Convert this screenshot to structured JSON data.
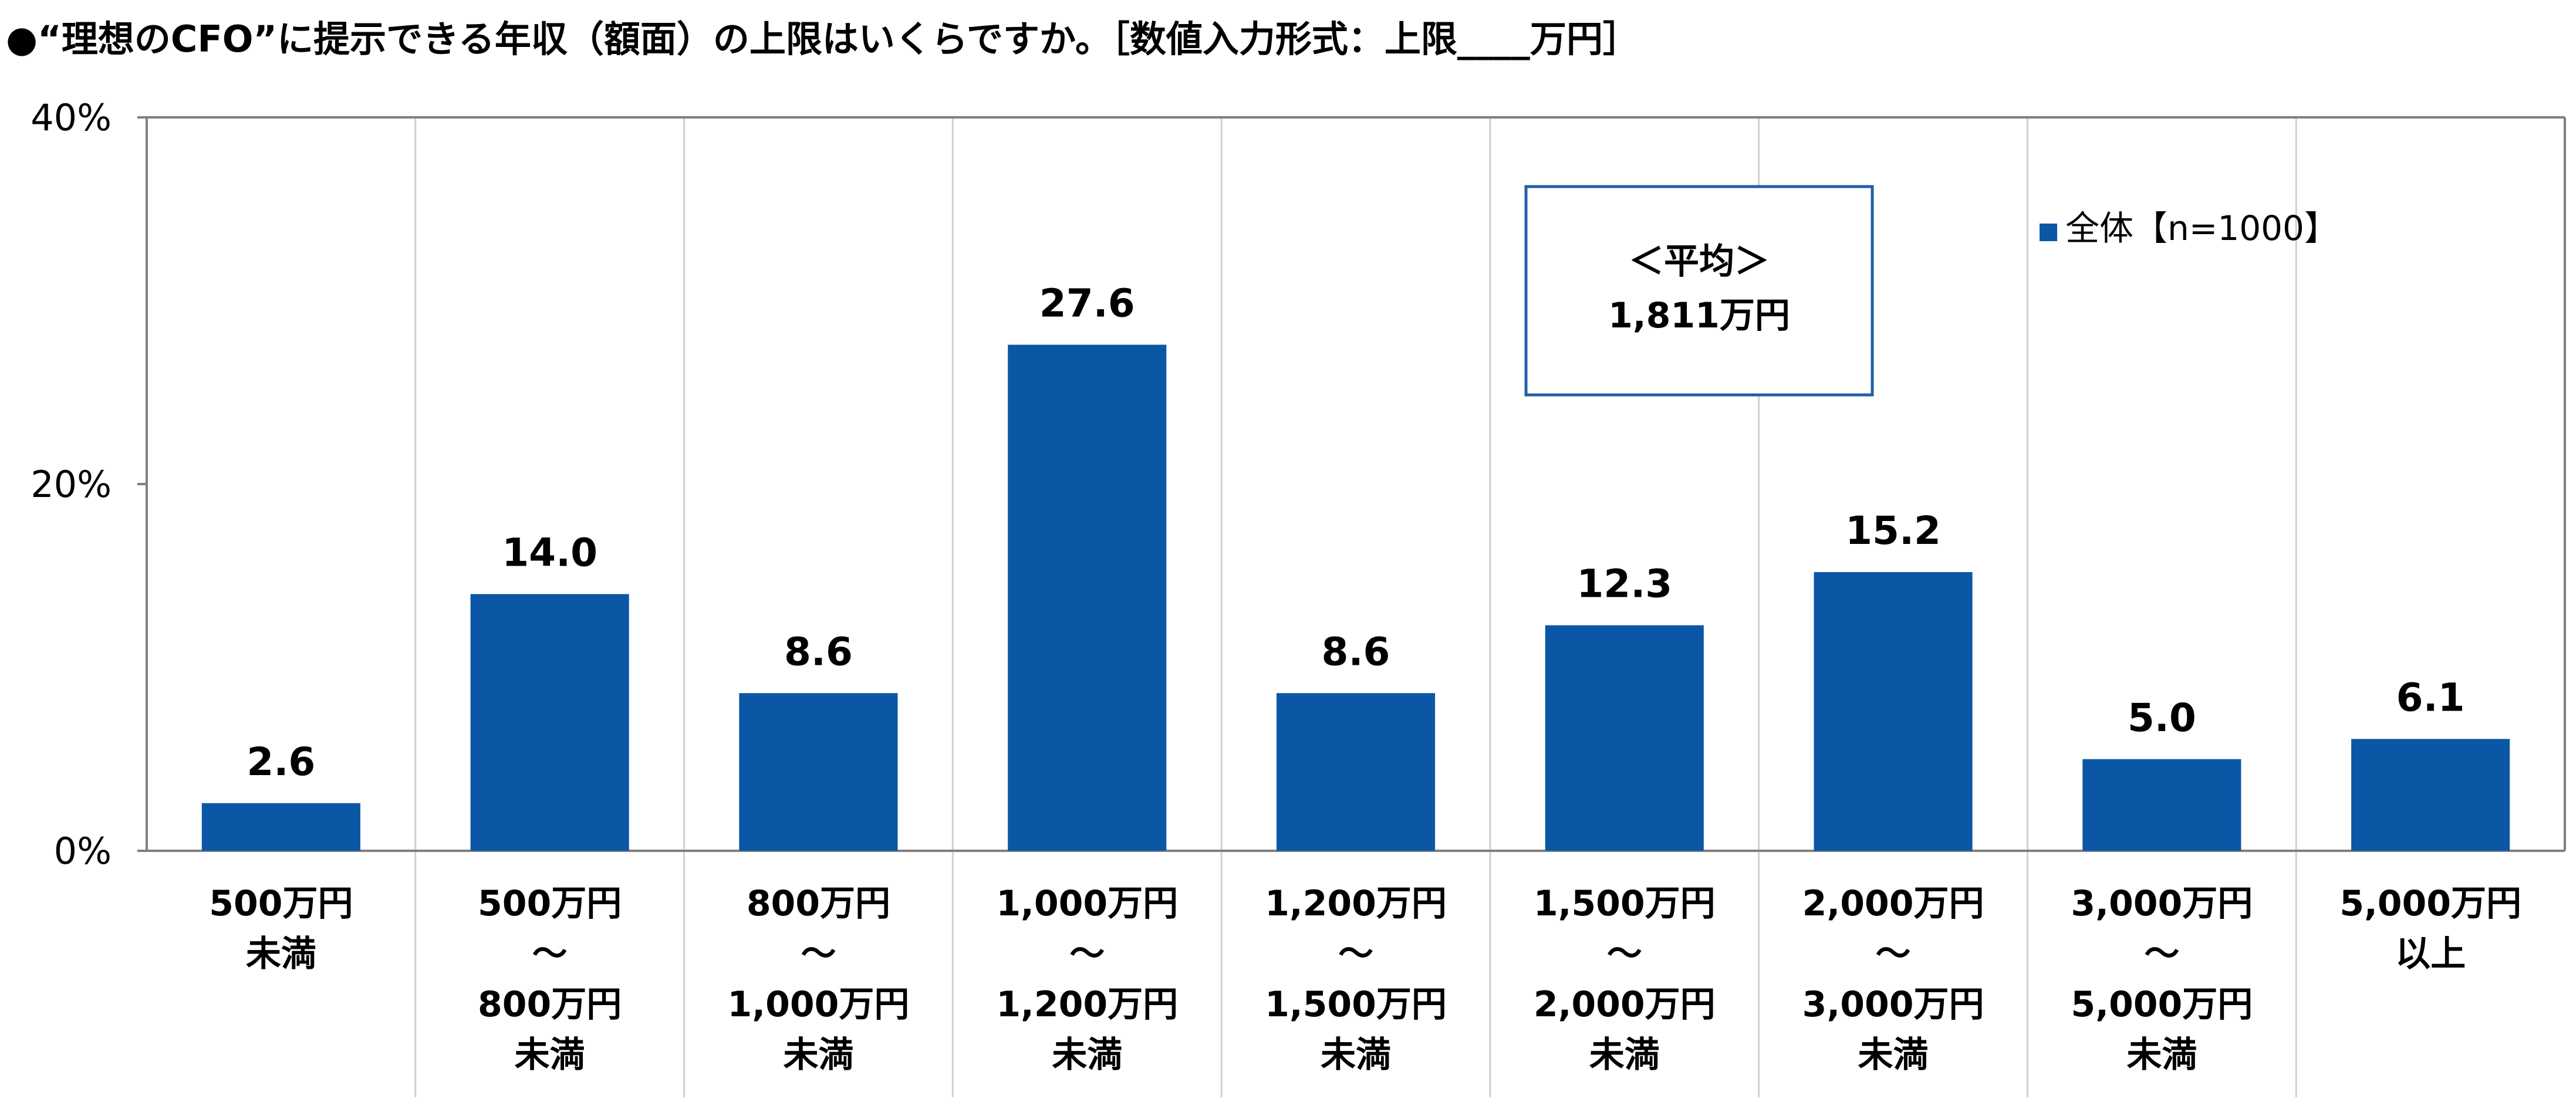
{
  "title": "●“理想のCFO”に提示できる年収（額面）の上限はいくらですか。［数値入力形式：上限____万円］",
  "chart_data": {
    "type": "bar",
    "title": "●“理想のCFO”に提示できる年収（額面）の上限はいくらですか。［数値入力形式：上限____万円］",
    "categories": [
      [
        "500万円",
        "未満"
      ],
      [
        "500万円",
        "～",
        "800万円",
        "未満"
      ],
      [
        "800万円",
        "～",
        "1,000万円",
        "未満"
      ],
      [
        "1,000万円",
        "～",
        "1,200万円",
        "未満"
      ],
      [
        "1,200万円",
        "～",
        "1,500万円",
        "未満"
      ],
      [
        "1,500万円",
        "～",
        "2,000万円",
        "未満"
      ],
      [
        "2,000万円",
        "～",
        "3,000万円",
        "未満"
      ],
      [
        "3,000万円",
        "～",
        "5,000万円",
        "未満"
      ],
      [
        "5,000万円",
        "以上"
      ]
    ],
    "series": [
      {
        "name": "全体【n=1000】",
        "values": [
          2.6,
          14.0,
          8.6,
          27.6,
          8.6,
          12.3,
          15.2,
          5.0,
          6.1
        ],
        "value_labels": [
          "2.6",
          "14.0",
          "8.6",
          "27.6",
          "8.6",
          "12.3",
          "15.2",
          "5.0",
          "6.1"
        ],
        "color": "#0b57a6"
      }
    ],
    "yticks": [
      "0%",
      "20%",
      "40%"
    ],
    "ytick_values": [
      0,
      20,
      40
    ],
    "ylim": [
      0,
      40
    ],
    "grid": "vertical category separators only",
    "legend": {
      "position": "top-right",
      "label": "全体【n=1000】"
    },
    "annotation": {
      "line1": "＜平均＞",
      "line2": "1,811万円"
    }
  },
  "colors": {
    "bar": "#0b57a6",
    "axis": "#7f7f7f",
    "separator": "#d0d0d0",
    "annotation_border": "#1f5fa8"
  }
}
